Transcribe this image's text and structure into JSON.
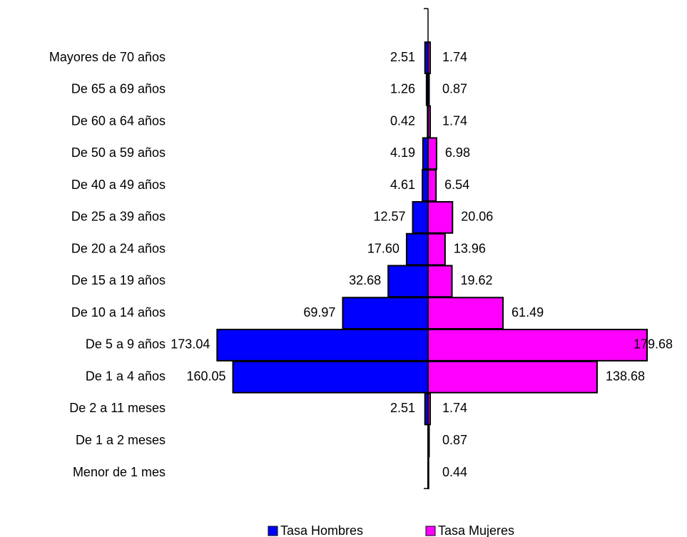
{
  "chart_data": {
    "type": "pyramid",
    "categories": [
      "Mayores de 70 años",
      "De 65 a 69 años",
      "De 60 a 64 años",
      "De 50 a 59 años",
      "De 40 a 49 años",
      "De 25 a 39 años",
      "De 20 a 24 años",
      "De 15 a 19 años",
      "De 10 a 14 años",
      "De 5 a 9 años",
      "De 1 a 4 años",
      "De 2 a 11 meses",
      "De 1 a 2 meses",
      "Menor de 1 mes"
    ],
    "series": [
      {
        "name": "Tasa Hombres",
        "color": "#0000ff",
        "side": "left",
        "values": [
          2.51,
          1.26,
          0.42,
          4.19,
          4.61,
          12.57,
          17.6,
          32.68,
          69.97,
          173.04,
          160.05,
          2.51,
          null,
          null
        ],
        "value_labels": [
          "2.51",
          "1.26",
          "0.42",
          "4.19",
          "4.61",
          "12.57",
          "17.60",
          "32.68",
          "69.97",
          "173.04",
          "160.05",
          "2.51",
          null,
          null
        ]
      },
      {
        "name": "Tasa Mujeres",
        "color": "#ff00ff",
        "side": "right",
        "values": [
          1.74,
          0.87,
          1.74,
          6.98,
          6.54,
          20.06,
          13.96,
          19.62,
          61.49,
          179.68,
          138.68,
          1.74,
          0.87,
          0.44
        ],
        "value_labels": [
          "1.74",
          "0.87",
          "1.74",
          "6.98",
          "6.54",
          "20.06",
          "13.96",
          "19.62",
          "61.49",
          "179.68",
          "138.68",
          "1.74",
          "0.87",
          "0.44"
        ]
      }
    ]
  }
}
